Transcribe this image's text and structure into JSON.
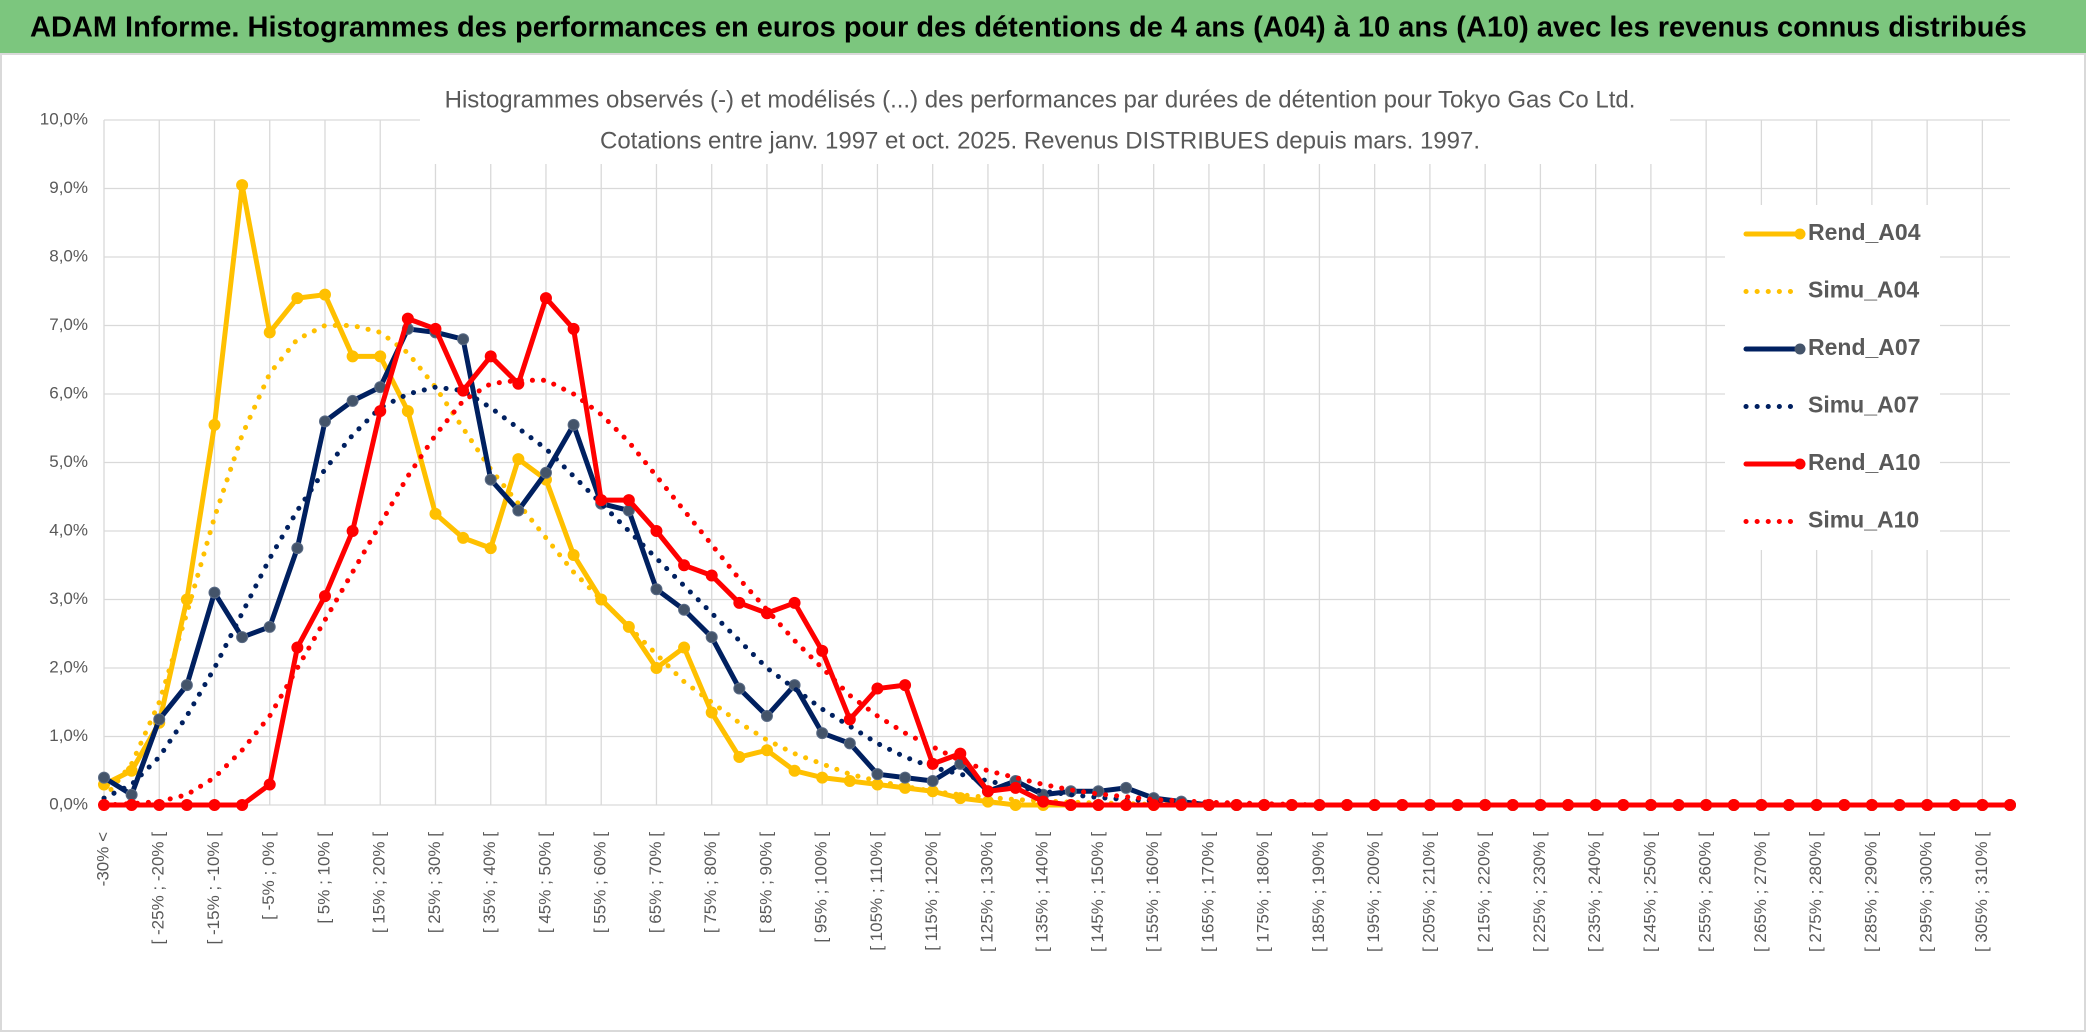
{
  "header": {
    "title": "ADAM Informe. Histogrammes des performances en euros pour des détentions de 4 ans (A04) à 10 ans (A10) avec les revenus connus distribués"
  },
  "chart_data": {
    "type": "line",
    "title": "Histogrammes observés (-) et modélisés (...) des performances par durées de détention pour Tokyo Gas Co Ltd.",
    "subtitle": "Cotations entre janv. 1997 et oct. 2025. Revenus DISTRIBUES depuis mars. 1997.",
    "categories": [
      "-30% <",
      null,
      "[ -25% ; -20% [",
      null,
      "[ -15% ; -10% [",
      null,
      "[ -5% ; 0% [",
      null,
      "[ 5% ; 10% [",
      null,
      "[ 15% ; 20% [",
      null,
      "[ 25% ; 30% [",
      null,
      "[ 35% ; 40% [",
      null,
      "[ 45% ; 50% [",
      null,
      "[ 55% ; 60% [",
      null,
      "[ 65% ; 70% [",
      null,
      "[ 75% ; 80% [",
      null,
      "[ 85% ; 90% [",
      null,
      "[ 95% ; 100% [",
      null,
      "[ 105% ; 110% [",
      null,
      "[ 115% ; 120% [",
      null,
      "[ 125% ; 130% [",
      null,
      "[ 135% ; 140% [",
      null,
      "[ 145% ; 150% [",
      null,
      "[ 155% ; 160% [",
      null,
      "[ 165% ; 170% [",
      null,
      "[ 175% ; 180% [",
      null,
      "[ 185% ; 190% [",
      null,
      "[ 195% ; 200% [",
      null,
      "[ 205% ; 210% [",
      null,
      "[ 215% ; 220% [",
      null,
      "[ 225% ; 230% [",
      null,
      "[ 235% ; 240% [",
      null,
      "[ 245% ; 250% [",
      null,
      "[ 255% ; 260% [",
      null,
      "[ 265% ; 270% [",
      null,
      "[ 275% ; 280% [",
      null,
      "[ 285% ; 290% [",
      null,
      "[ 295% ; 300% [",
      null,
      "[ 305% ; 310% [",
      null
    ],
    "ylim": [
      0,
      10
    ],
    "yticks": [
      {
        "value": 0,
        "label": "0,0%"
      },
      {
        "value": 1,
        "label": "1,0%"
      },
      {
        "value": 2,
        "label": "2,0%"
      },
      {
        "value": 3,
        "label": "3,0%"
      },
      {
        "value": 4,
        "label": "4,0%"
      },
      {
        "value": 5,
        "label": "5,0%"
      },
      {
        "value": 6,
        "label": "6,0%"
      },
      {
        "value": 7,
        "label": "7,0%"
      },
      {
        "value": 8,
        "label": "8,0%"
      },
      {
        "value": 9,
        "label": "9,0%"
      },
      {
        "value": 10,
        "label": "10,0%"
      }
    ],
    "grid": true,
    "legend": "right",
    "series": [
      {
        "name": "Rend_A04",
        "color": "#FFC000",
        "style": "solid",
        "markers": true,
        "values": [
          0.3,
          0.5,
          1.2,
          3.0,
          5.55,
          9.05,
          6.9,
          7.4,
          7.45,
          6.55,
          6.55,
          5.75,
          4.25,
          3.9,
          3.75,
          5.05,
          4.75,
          3.65,
          3.0,
          2.6,
          2.0,
          2.3,
          1.35,
          0.7,
          0.8,
          0.5,
          0.4,
          0.35,
          0.3,
          0.25,
          0.2,
          0.1,
          0.05,
          0,
          0,
          0,
          0,
          0,
          0,
          0,
          0,
          0,
          0,
          0,
          0,
          0,
          0,
          0,
          0,
          0,
          0,
          0,
          0,
          0,
          0,
          0,
          0,
          0,
          0,
          0,
          0,
          0,
          0,
          0,
          0,
          0,
          0,
          0,
          0,
          0
        ]
      },
      {
        "name": "Simu_A04",
        "color": "#FFC000",
        "style": "dotted",
        "markers": false,
        "values": [
          0.1,
          0.6,
          1.5,
          2.8,
          4.2,
          5.4,
          6.3,
          6.8,
          7.0,
          7.0,
          6.9,
          6.6,
          6.1,
          5.5,
          4.9,
          4.4,
          3.9,
          3.4,
          3.0,
          2.6,
          2.2,
          1.8,
          1.5,
          1.2,
          0.95,
          0.75,
          0.6,
          0.45,
          0.35,
          0.27,
          0.2,
          0.15,
          0.11,
          0.08,
          0.06,
          0.04,
          0.03,
          0.02,
          0.01,
          0.01,
          0,
          0,
          0,
          0,
          0,
          0,
          0,
          0,
          0,
          0,
          0,
          0,
          0,
          0,
          0,
          0,
          0,
          0,
          0,
          0,
          0,
          0,
          0,
          0,
          0,
          0,
          0,
          0,
          0,
          0
        ]
      },
      {
        "name": "Rend_A07",
        "color": "#002060",
        "style": "solid",
        "markers": true,
        "values": [
          0.4,
          0.15,
          1.25,
          1.75,
          3.1,
          2.45,
          2.6,
          3.75,
          5.6,
          5.9,
          6.1,
          6.95,
          6.9,
          6.8,
          4.75,
          4.3,
          4.85,
          5.55,
          4.4,
          4.3,
          3.15,
          2.85,
          2.45,
          1.7,
          1.3,
          1.75,
          1.05,
          0.9,
          0.45,
          0.4,
          0.35,
          0.6,
          0.2,
          0.35,
          0.15,
          0.2,
          0.2,
          0.25,
          0.1,
          0.05,
          0,
          0,
          0,
          0,
          0,
          0,
          0,
          0,
          0,
          0,
          0,
          0,
          0,
          0,
          0,
          0,
          0,
          0,
          0,
          0,
          0,
          0,
          0,
          0,
          0,
          0,
          0,
          0,
          0,
          0
        ]
      },
      {
        "name": "Simu_A07",
        "color": "#002060",
        "style": "dotted",
        "markers": false,
        "values": [
          0.1,
          0.3,
          0.7,
          1.3,
          2.0,
          2.8,
          3.6,
          4.3,
          4.9,
          5.4,
          5.8,
          6.0,
          6.1,
          6.05,
          5.8,
          5.5,
          5.2,
          4.8,
          4.4,
          4.0,
          3.6,
          3.2,
          2.8,
          2.4,
          2.0,
          1.7,
          1.4,
          1.15,
          0.9,
          0.7,
          0.55,
          0.45,
          0.35,
          0.27,
          0.2,
          0.15,
          0.11,
          0.08,
          0.06,
          0.04,
          0.03,
          0.02,
          0.01,
          0,
          0,
          0,
          0,
          0,
          0,
          0,
          0,
          0,
          0,
          0,
          0,
          0,
          0,
          0,
          0,
          0,
          0,
          0,
          0,
          0,
          0,
          0,
          0,
          0,
          0,
          0
        ]
      },
      {
        "name": "Rend_A10",
        "color": "#FF0000",
        "style": "solid",
        "markers": true,
        "values": [
          0,
          0,
          0,
          0,
          0,
          0,
          0.3,
          2.3,
          3.05,
          4.0,
          5.75,
          7.1,
          6.95,
          6.05,
          6.55,
          6.15,
          7.4,
          6.95,
          4.45,
          4.45,
          4.0,
          3.5,
          3.35,
          2.95,
          2.8,
          2.95,
          2.25,
          1.25,
          1.7,
          1.75,
          0.6,
          0.75,
          0.2,
          0.25,
          0.05,
          0,
          0,
          0,
          0,
          0,
          0,
          0,
          0,
          0,
          0,
          0,
          0,
          0,
          0,
          0,
          0,
          0,
          0,
          0,
          0,
          0,
          0,
          0,
          0,
          0,
          0,
          0,
          0,
          0,
          0,
          0,
          0,
          0,
          0,
          0
        ]
      },
      {
        "name": "Simu_A10",
        "color": "#FF0000",
        "style": "dotted",
        "markers": false,
        "values": [
          0,
          0.02,
          0.05,
          0.15,
          0.4,
          0.8,
          1.3,
          2.0,
          2.7,
          3.4,
          4.1,
          4.8,
          5.4,
          5.9,
          6.15,
          6.2,
          6.2,
          6.0,
          5.7,
          5.3,
          4.8,
          4.3,
          3.8,
          3.3,
          2.85,
          2.4,
          2.0,
          1.6,
          1.3,
          1.05,
          0.85,
          0.65,
          0.5,
          0.4,
          0.3,
          0.22,
          0.16,
          0.12,
          0.08,
          0.06,
          0.04,
          0.03,
          0.02,
          0.01,
          0,
          0,
          0,
          0,
          0,
          0,
          0,
          0,
          0,
          0,
          0,
          0,
          0,
          0,
          0,
          0,
          0,
          0,
          0,
          0,
          0,
          0,
          0,
          0,
          0,
          0
        ]
      }
    ]
  }
}
